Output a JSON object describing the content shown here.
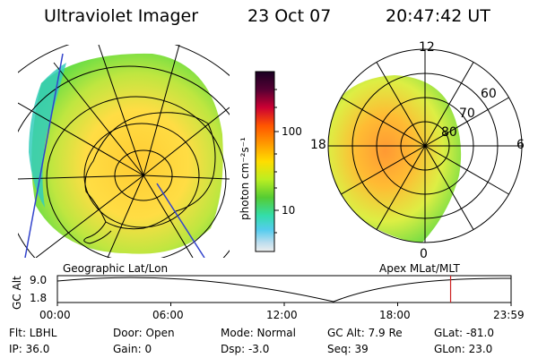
{
  "header": {
    "instrument": "Ultraviolet Imager",
    "date": "23 Oct 07",
    "time": "20:47:42 UT"
  },
  "panels": {
    "left_label": "Geographic Lat/Lon",
    "right_label": "Apex MLat/MLT"
  },
  "colorbar": {
    "unit_label": "photon cm⁻²s⁻¹",
    "tick_high": "100",
    "tick_low": "10"
  },
  "polar_plot": {
    "mlt_top": "12",
    "mlt_left": "18",
    "mlt_right": "6",
    "mlt_bottom": "0",
    "lat_60": "60",
    "lat_70": "70",
    "lat_80": "80"
  },
  "altitude_strip": {
    "ylabel": "GC Alt",
    "ytick_high": "9.0",
    "ytick_low": "1.8",
    "xticks": [
      "00:00",
      "06:00",
      "12:00",
      "18:00",
      "23:59"
    ],
    "current_marker_hours": 20.8
  },
  "info": {
    "flt": "Flt: LBHL",
    "ip": "IP: 36.0",
    "door": "Door: Open",
    "gain": "Gain:  0",
    "mode": "Mode: Normal",
    "dsp": "Dsp:   -3.0",
    "gcalt": "GC Alt: 7.9 Re",
    "seq": "Seq: 39",
    "glat": "GLat: -81.0",
    "glon": "GLon:  23.0"
  },
  "colors": {
    "frame": "#000000",
    "marker": "#cc2222"
  }
}
